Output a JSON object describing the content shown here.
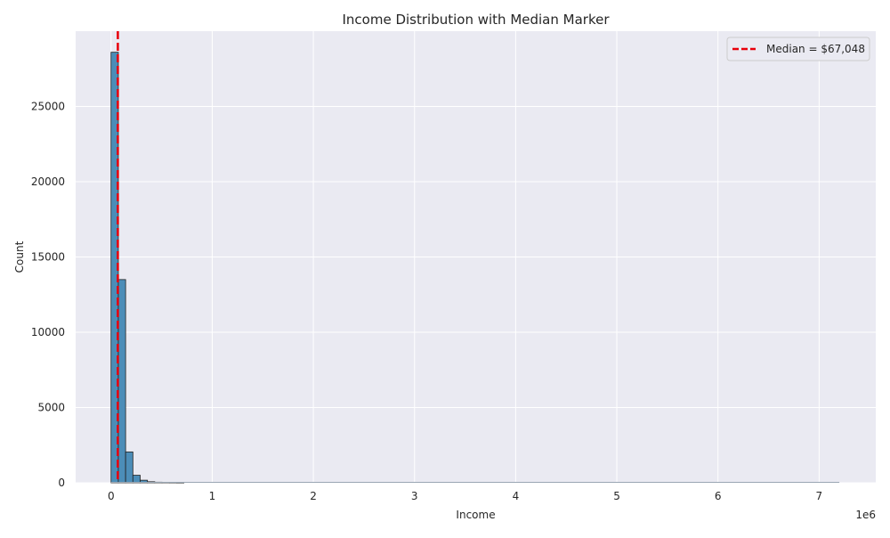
{
  "chart_data": {
    "type": "bar",
    "title": "Income Distribution with Median Marker",
    "xlabel": "Income",
    "ylabel": "Count",
    "x_offset_label": "1e6",
    "xlim": [
      -350000,
      7560000
    ],
    "ylim": [
      0,
      30000
    ],
    "x_ticks": [
      0,
      1000000,
      2000000,
      3000000,
      4000000,
      5000000,
      6000000,
      7000000
    ],
    "x_tick_labels": [
      "0",
      "1",
      "2",
      "3",
      "4",
      "5",
      "6",
      "7"
    ],
    "y_ticks": [
      0,
      5000,
      10000,
      15000,
      20000,
      25000
    ],
    "y_tick_labels": [
      "0",
      "5000",
      "10000",
      "15000",
      "20000",
      "25000"
    ],
    "grid": true,
    "bin_width": 72000,
    "bin_start": 0,
    "bins_to": 7200000,
    "series": [
      {
        "bars": [
          {
            "x0": 0,
            "x1": 72000,
            "count": 28600
          },
          {
            "x0": 72000,
            "x1": 144000,
            "count": 13500
          },
          {
            "x0": 144000,
            "x1": 216000,
            "count": 2050
          },
          {
            "x0": 216000,
            "x1": 288000,
            "count": 500
          },
          {
            "x0": 288000,
            "x1": 360000,
            "count": 170
          },
          {
            "x0": 360000,
            "x1": 432000,
            "count": 70
          },
          {
            "x0": 432000,
            "x1": 504000,
            "count": 40
          },
          {
            "x0": 504000,
            "x1": 576000,
            "count": 25
          },
          {
            "x0": 576000,
            "x1": 648000,
            "count": 15
          },
          {
            "x0": 648000,
            "x1": 720000,
            "count": 10
          }
        ],
        "color": "#4c8db8"
      }
    ],
    "median": {
      "value": 67048,
      "label": "Median = $67,048",
      "color": "#e8000b"
    },
    "legend_position": "top-right",
    "colors": {
      "background": "#eaeaf2",
      "grid": "#ffffff",
      "bar_edge": "#222222"
    }
  }
}
